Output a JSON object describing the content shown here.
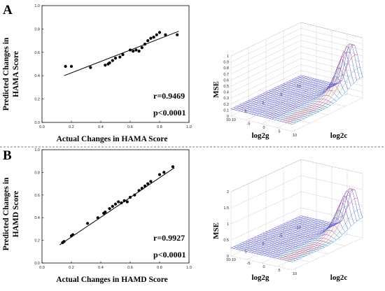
{
  "figure": {
    "panels": [
      {
        "letter": "A",
        "scatter": {
          "xlabel": "Actual Changes in  HAMA Score",
          "ylabel_line1": "Predicted Changes in",
          "ylabel_line2": "HAMA Score",
          "r_text": "r=0.9469",
          "p_text": "p<0.0001"
        },
        "surface": {
          "zlabel": "MSE",
          "xlabel": "log2g",
          "ylabel": "log2c",
          "z_ticks": [
            "0",
            "0.1",
            "0.2",
            "0.3",
            "0.4",
            "0.5",
            "0.6",
            "0.7",
            "0.8",
            "0.9",
            "1"
          ]
        }
      },
      {
        "letter": "B",
        "scatter": {
          "xlabel": "Actual Changes in  HAMD Score",
          "ylabel_line1": "Predicted Changes in",
          "ylabel_line2": "HAMD Score",
          "r_text": "r=0.9927",
          "p_text": "p<0.0001"
        },
        "surface": {
          "zlabel": "MSE",
          "xlabel": "log2g",
          "ylabel": "log2c",
          "z_ticks": [
            "0",
            "0.5",
            "1",
            "1.5",
            "2"
          ]
        }
      }
    ],
    "shared_ticks": {
      "scatter": [
        "0.0",
        "0.2",
        "0.4",
        "0.6",
        "0.8",
        "1.0"
      ],
      "surface_g": [
        "10",
        "5",
        "0",
        "-5",
        "-10"
      ],
      "surface_c": [
        "-10",
        "-5",
        "0",
        "5",
        "10"
      ]
    }
  },
  "chart_data": [
    {
      "type": "scatter",
      "panel": "A",
      "xlabel": "Actual Changes in  HAMA Score",
      "ylabel": "Predicted Changes in  HAMA Score",
      "xlim": [
        0,
        1.0
      ],
      "ylim": [
        0,
        1.0
      ],
      "x_ticks": [
        0.0,
        0.2,
        0.4,
        0.6,
        0.8,
        1.0
      ],
      "y_ticks": [
        0.0,
        0.2,
        0.4,
        0.6,
        0.8,
        1.0
      ],
      "points": [
        [
          0.16,
          0.48
        ],
        [
          0.2,
          0.48
        ],
        [
          0.33,
          0.47
        ],
        [
          0.43,
          0.49
        ],
        [
          0.45,
          0.5
        ],
        [
          0.46,
          0.51
        ],
        [
          0.48,
          0.53
        ],
        [
          0.5,
          0.55
        ],
        [
          0.53,
          0.56
        ],
        [
          0.55,
          0.58
        ],
        [
          0.6,
          0.62
        ],
        [
          0.62,
          0.61
        ],
        [
          0.64,
          0.62
        ],
        [
          0.66,
          0.61
        ],
        [
          0.68,
          0.64
        ],
        [
          0.7,
          0.67
        ],
        [
          0.72,
          0.7
        ],
        [
          0.74,
          0.72
        ],
        [
          0.76,
          0.73
        ],
        [
          0.78,
          0.75
        ],
        [
          0.8,
          0.77
        ],
        [
          0.84,
          0.75
        ],
        [
          0.92,
          0.75
        ]
      ],
      "fit_line": [
        [
          0.15,
          0.4
        ],
        [
          0.93,
          0.78
        ]
      ],
      "annotations": [
        "r=0.9469",
        "p<0.0001"
      ]
    },
    {
      "type": "scatter",
      "panel": "B",
      "xlabel": "Actual Changes in  HAMD Score",
      "ylabel": "Predicted Changes in  HAMD Score",
      "xlim": [
        0,
        1.0
      ],
      "ylim": [
        0,
        1.0
      ],
      "x_ticks": [
        0.0,
        0.2,
        0.4,
        0.6,
        0.8,
        1.0
      ],
      "y_ticks": [
        0.0,
        0.2,
        0.4,
        0.6,
        0.8,
        1.0
      ],
      "points": [
        [
          0.14,
          0.18
        ],
        [
          0.15,
          0.19
        ],
        [
          0.2,
          0.24
        ],
        [
          0.21,
          0.25
        ],
        [
          0.31,
          0.35
        ],
        [
          0.38,
          0.4
        ],
        [
          0.42,
          0.44
        ],
        [
          0.43,
          0.45
        ],
        [
          0.46,
          0.48
        ],
        [
          0.48,
          0.5
        ],
        [
          0.5,
          0.52
        ],
        [
          0.52,
          0.54
        ],
        [
          0.54,
          0.53
        ],
        [
          0.56,
          0.55
        ],
        [
          0.58,
          0.54
        ],
        [
          0.6,
          0.58
        ],
        [
          0.63,
          0.6
        ],
        [
          0.66,
          0.64
        ],
        [
          0.68,
          0.66
        ],
        [
          0.7,
          0.68
        ],
        [
          0.72,
          0.7
        ],
        [
          0.74,
          0.72
        ],
        [
          0.8,
          0.78
        ],
        [
          0.83,
          0.8
        ],
        [
          0.89,
          0.85
        ]
      ],
      "fit_line": [
        [
          0.12,
          0.16
        ],
        [
          0.9,
          0.84
        ]
      ],
      "annotations": [
        "r=0.9927",
        "p<0.0001"
      ]
    },
    {
      "type": "surface",
      "panel": "A",
      "zlabel": "MSE",
      "xlabel": "log2g",
      "ylabel": "log2c",
      "x_range": [
        -10,
        10
      ],
      "y_range": [
        -10,
        10
      ],
      "z_range": [
        0,
        1
      ],
      "z_ticks": [
        0,
        0.1,
        0.2,
        0.3,
        0.4,
        0.5,
        0.6,
        0.7,
        0.8,
        0.9,
        1
      ],
      "surface": {
        "base": 0.12,
        "peak_value": 0.85,
        "peak_at": {
          "log2g": 10,
          "log2c": 10
        },
        "description_free": true
      }
    },
    {
      "type": "surface",
      "panel": "B",
      "zlabel": "MSE",
      "xlabel": "log2g",
      "ylabel": "log2c",
      "x_range": [
        -10,
        10
      ],
      "y_range": [
        -10,
        10
      ],
      "z_range": [
        0,
        2
      ],
      "z_ticks": [
        0,
        0.5,
        1,
        1.5,
        2
      ],
      "surface": {
        "base": 0.25,
        "peak_value": 1.45,
        "peak_at": {
          "log2g": 10,
          "log2c": 10
        },
        "description_free": true
      }
    }
  ]
}
